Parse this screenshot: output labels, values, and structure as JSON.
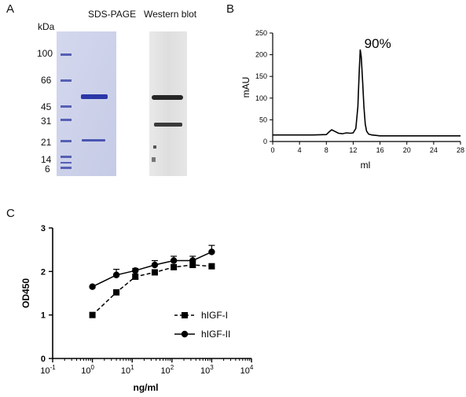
{
  "panels": {
    "a": {
      "label": "A",
      "kda_label": "kDa",
      "markers": [
        "100",
        "66",
        "45",
        "31",
        "21",
        "14",
        "6"
      ],
      "sds_title": "SDS-PAGE",
      "wb_title": "Western blot"
    },
    "b": {
      "label": "B"
    },
    "c": {
      "label": "C"
    }
  },
  "chart_data": [
    {
      "type": "line",
      "xlabel": "ml",
      "ylabel": "mAU",
      "xlim": [
        0,
        28
      ],
      "ylim": [
        0,
        250
      ],
      "xticks": [
        "0",
        "4",
        "8",
        "12",
        "16",
        "20",
        "24",
        "28"
      ],
      "yticks": [
        "0",
        "50",
        "100",
        "150",
        "200",
        "250"
      ],
      "annotation": "90%",
      "series": [
        {
          "x": [
            0,
            2,
            4,
            6,
            8,
            8.4,
            8.8,
            9.2,
            9.8,
            10.4,
            11,
            11.6,
            12,
            12.4,
            12.7,
            12.9,
            13.05,
            13.2,
            13.4,
            13.6,
            13.8,
            14.0,
            14.3,
            14.8,
            15.5,
            16,
            18,
            20,
            24,
            28
          ],
          "y": [
            15,
            15,
            15,
            15,
            16,
            22,
            27,
            24,
            19,
            18,
            20,
            19,
            20,
            30,
            80,
            160,
            212,
            195,
            140,
            80,
            40,
            24,
            17,
            15,
            14,
            13,
            13,
            13,
            13,
            13
          ]
        }
      ]
    },
    {
      "type": "line",
      "xlabel": "ng/ml",
      "ylabel": "OD450",
      "xscale": "log",
      "xlim": [
        0.1,
        10000
      ],
      "ylim": [
        0,
        3
      ],
      "xticks": [
        {
          "base": "10",
          "exp": "-1"
        },
        {
          "base": "10",
          "exp": "0"
        },
        {
          "base": "10",
          "exp": "1"
        },
        {
          "base": "10",
          "exp": "2"
        },
        {
          "base": "10",
          "exp": "3"
        },
        {
          "base": "10",
          "exp": "4"
        }
      ],
      "yticks": [
        "0",
        "1",
        "2",
        "3"
      ],
      "legend": "center-right",
      "series": [
        {
          "name": "hIGF-I",
          "marker": "square",
          "dash": true,
          "x": [
            1,
            4,
            12,
            37,
            111,
            333,
            1000
          ],
          "y": [
            1.0,
            1.52,
            1.88,
            1.98,
            2.1,
            2.15,
            2.12
          ],
          "err": [
            0,
            0.03,
            0.05,
            0.05,
            0.05,
            0.05,
            0.05
          ]
        },
        {
          "name": "hIGF-II",
          "marker": "circle",
          "dash": false,
          "x": [
            1,
            4,
            12,
            37,
            111,
            333,
            1000
          ],
          "y": [
            1.65,
            1.92,
            2.02,
            2.15,
            2.25,
            2.25,
            2.45
          ],
          "err": [
            0,
            0.13,
            0.05,
            0.1,
            0.1,
            0.1,
            0.15
          ]
        }
      ]
    }
  ]
}
